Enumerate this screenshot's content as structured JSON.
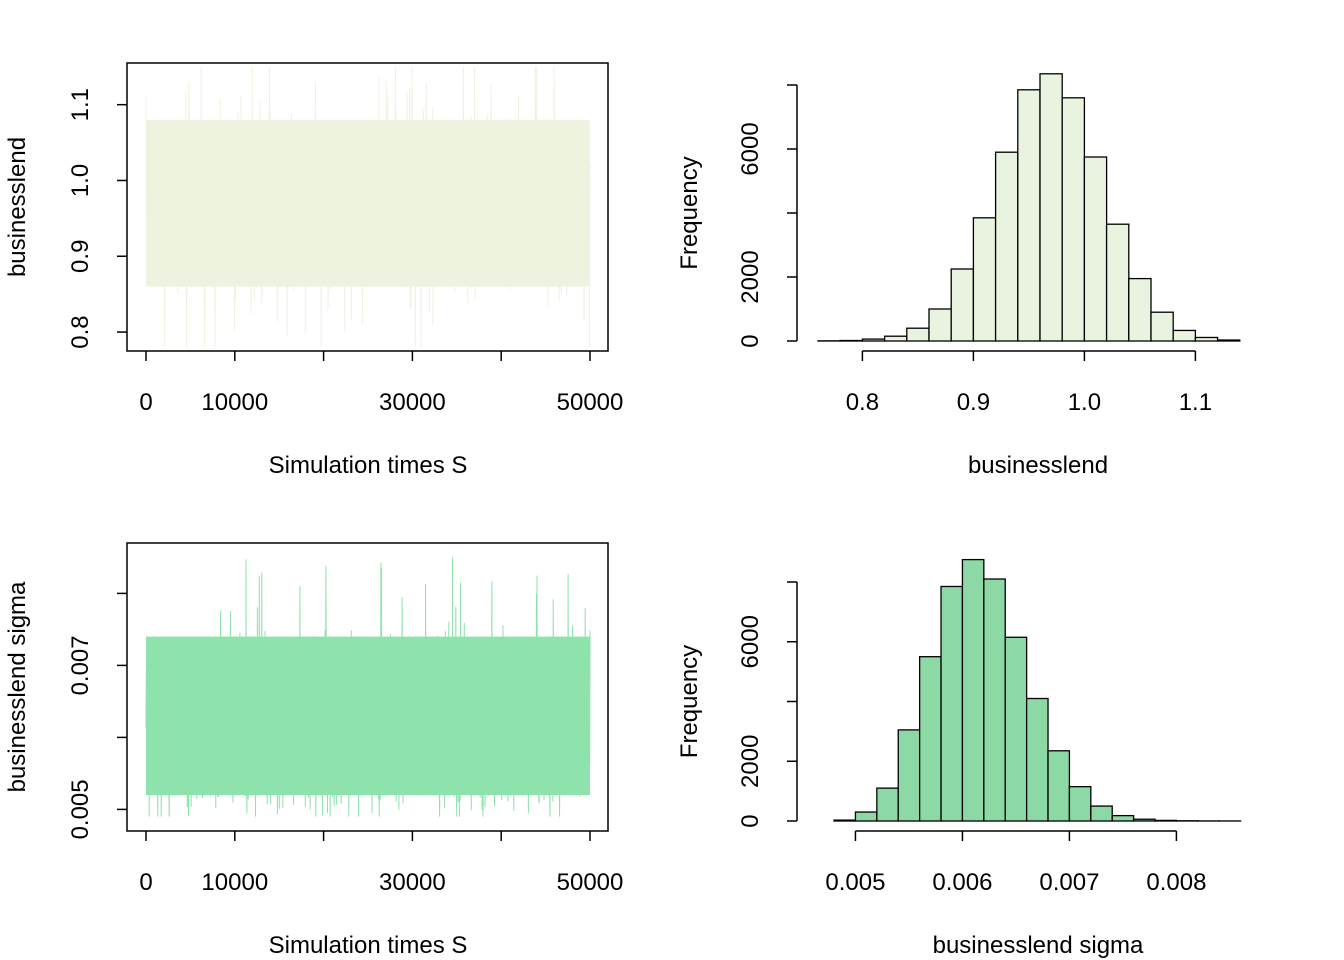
{
  "chart_data": [
    {
      "type": "line",
      "xlabel": "Simulation times S",
      "ylabel": "businesslend",
      "xlim": [
        0,
        50000
      ],
      "ylim": [
        0.775,
        1.155
      ],
      "x_ticks": [
        0,
        10000,
        20000,
        30000,
        40000,
        50000
      ],
      "x_tick_labels": [
        "0",
        "10000",
        "",
        "30000",
        "",
        "50000"
      ],
      "y_ticks": [
        0.8,
        0.9,
        1.0,
        1.1
      ],
      "y_tick_labels": [
        "0.8",
        "0.9",
        "1.0",
        "1.1"
      ],
      "band": {
        "mean": 0.965,
        "low": 0.86,
        "high": 1.08,
        "min": 0.78,
        "max": 1.15
      },
      "color": "#eef3e0",
      "box": true
    },
    {
      "type": "bar",
      "xlabel": "businesslend",
      "ylabel": "Frequency",
      "bin_edges": [
        0.76,
        0.78,
        0.8,
        0.82,
        0.84,
        0.86,
        0.88,
        0.9,
        0.92,
        0.94,
        0.96,
        0.98,
        1.0,
        1.02,
        1.04,
        1.06,
        1.08,
        1.1,
        1.12,
        1.14
      ],
      "values": [
        5,
        15,
        60,
        150,
        400,
        1000,
        2250,
        3850,
        5900,
        7850,
        8350,
        7600,
        5750,
        3650,
        1950,
        900,
        330,
        110,
        30
      ],
      "x_ticks": [
        0.8,
        0.9,
        1.0,
        1.1
      ],
      "x_tick_labels": [
        "0.8",
        "0.9",
        "1.0",
        "1.1"
      ],
      "y_ticks": [
        0,
        2000,
        4000,
        6000,
        8000
      ],
      "y_tick_labels": [
        "0",
        "2000",
        "",
        "6000",
        ""
      ],
      "xlim": [
        0.76,
        1.16
      ],
      "ylim": [
        0,
        8000
      ],
      "color": "#eaf3df",
      "box": false
    },
    {
      "type": "line",
      "xlabel": "Simulation times S",
      "ylabel": "businesslend sigma",
      "xlim": [
        0,
        50000
      ],
      "ylim": [
        0.0047,
        0.0087
      ],
      "x_ticks": [
        0,
        10000,
        20000,
        30000,
        40000,
        50000
      ],
      "x_tick_labels": [
        "0",
        "10000",
        "",
        "30000",
        "",
        "50000"
      ],
      "y_ticks": [
        0.005,
        0.006,
        0.007,
        0.008
      ],
      "y_tick_labels": [
        "0.005",
        "",
        "0.007",
        ""
      ],
      "band": {
        "mean": 0.0061,
        "low": 0.0052,
        "high": 0.0074,
        "min": 0.0049,
        "max": 0.0085
      },
      "color": "#8ee3ad",
      "box": true
    },
    {
      "type": "bar",
      "xlabel": "businesslend sigma",
      "ylabel": "Frequency",
      "bin_edges": [
        0.0048,
        0.005,
        0.0052,
        0.0054,
        0.0056,
        0.0058,
        0.006,
        0.0062,
        0.0064,
        0.0066,
        0.0068,
        0.007,
        0.0072,
        0.0074,
        0.0076,
        0.0078,
        0.008,
        0.0082,
        0.0084,
        0.0086
      ],
      "values": [
        30,
        300,
        1100,
        3050,
        5500,
        7850,
        8750,
        8100,
        6150,
        4100,
        2350,
        1150,
        500,
        180,
        60,
        20,
        8,
        3,
        1
      ],
      "x_ticks": [
        0.005,
        0.006,
        0.007,
        0.008
      ],
      "x_tick_labels": [
        "0.005",
        "0.006",
        "0.007",
        "0.008"
      ],
      "y_ticks": [
        0,
        2000,
        4000,
        6000,
        8000
      ],
      "y_tick_labels": [
        "0",
        "2000",
        "",
        "6000",
        ""
      ],
      "xlim": [
        0.00465,
        0.0088
      ],
      "ylim": [
        0,
        8000
      ],
      "color": "#8dd9a6",
      "box": false
    }
  ]
}
